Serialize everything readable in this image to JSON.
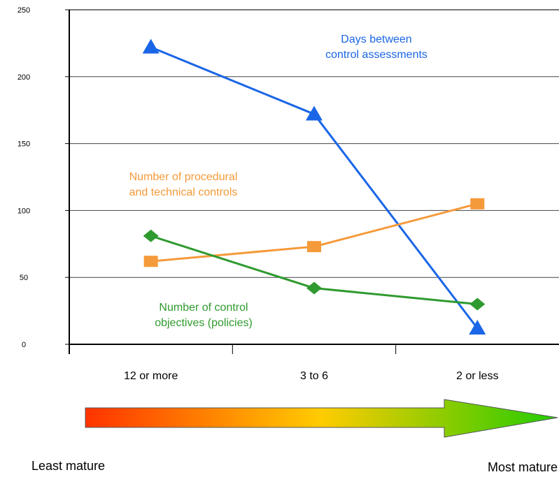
{
  "chart_data": {
    "type": "line",
    "categories": [
      "12 or more",
      "3 to 6",
      "2 or less"
    ],
    "ylim": [
      0,
      250
    ],
    "yticks": [
      0,
      50,
      100,
      150,
      200,
      250
    ],
    "grid": true,
    "series": [
      {
        "name": "Days between control assessments",
        "label_lines": [
          "Days between",
          "control assessments"
        ],
        "values": [
          222,
          172,
          12
        ],
        "marker": "triangle",
        "color": "#1a66e6"
      },
      {
        "name": "Number of procedural and technical controls",
        "label_lines": [
          "Number of procedural",
          "and technical controls"
        ],
        "values": [
          62,
          73,
          105
        ],
        "marker": "square",
        "color": "#f59a3a"
      },
      {
        "name": "Number of control objectives (policies)",
        "label_lines": [
          "Number of control",
          "objectives (policies)"
        ],
        "values": [
          81,
          42,
          30
        ],
        "marker": "diamond",
        "color": "#2f9a2f"
      }
    ],
    "maturity_arrow": {
      "left_label": "Least mature",
      "right_label": "Most mature",
      "gradient_colors": [
        "#ff3300",
        "#ffcc00",
        "#22cc00"
      ]
    }
  }
}
